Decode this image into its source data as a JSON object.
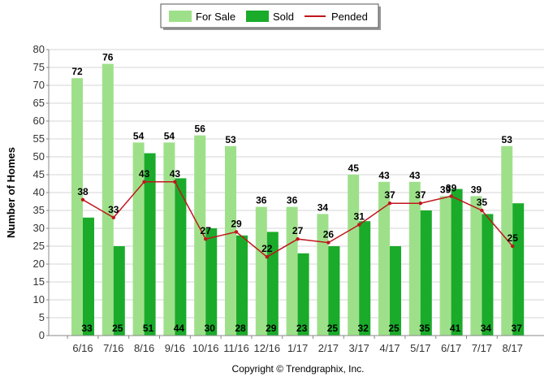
{
  "chart_data": {
    "type": "bar",
    "categories": [
      "6/16",
      "7/16",
      "8/16",
      "9/16",
      "10/16",
      "11/16",
      "12/16",
      "1/17",
      "2/17",
      "3/17",
      "4/17",
      "5/17",
      "6/17",
      "7/17",
      "8/17"
    ],
    "series": [
      {
        "name": "For Sale",
        "kind": "bar",
        "color": "#9ee08a",
        "values": [
          72,
          76,
          54,
          54,
          56,
          53,
          36,
          36,
          34,
          45,
          43,
          43,
          39,
          39,
          53
        ]
      },
      {
        "name": "Sold",
        "kind": "bar",
        "color": "#1aab2a",
        "values": [
          33,
          25,
          51,
          44,
          30,
          28,
          29,
          23,
          25,
          32,
          25,
          35,
          41,
          34,
          37
        ]
      },
      {
        "name": "Pended",
        "kind": "line",
        "color": "#c0161c",
        "values": [
          38,
          33,
          43,
          43,
          27,
          29,
          22,
          27,
          26,
          31,
          37,
          37,
          39,
          35,
          25
        ]
      }
    ],
    "title": "",
    "xlabel": "",
    "ylabel": "Number of Homes",
    "ylim": [
      0,
      80
    ],
    "yticks": [
      0,
      5,
      10,
      15,
      20,
      25,
      30,
      35,
      40,
      45,
      50,
      55,
      60,
      65,
      70,
      75,
      80
    ],
    "grid": true,
    "legend_position": "top-center",
    "footer": "Copyright © Trendgraphix, Inc."
  }
}
